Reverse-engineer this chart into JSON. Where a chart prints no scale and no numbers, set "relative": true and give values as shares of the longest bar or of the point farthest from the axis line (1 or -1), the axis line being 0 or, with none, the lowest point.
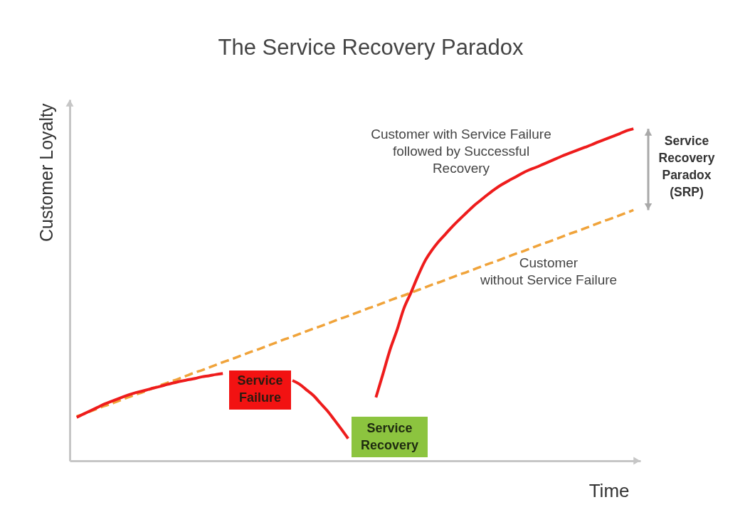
{
  "chart_data": {
    "type": "line",
    "title": "The Service Recovery Paradox",
    "xlabel": "Time",
    "ylabel": "Customer Loyalty",
    "relative": true,
    "categories": [
      null,
      null,
      null,
      null,
      null,
      null,
      null,
      null,
      null,
      null,
      null,
      null,
      null,
      null,
      null,
      null,
      null,
      null,
      null,
      null,
      null,
      null,
      null,
      null,
      null,
      null,
      null,
      null,
      null,
      null,
      null,
      null,
      null,
      null,
      null,
      null,
      null,
      null,
      null,
      null,
      null,
      null,
      null,
      null,
      null,
      null,
      null,
      null,
      null,
      null,
      null,
      null,
      null,
      null,
      null,
      null,
      null,
      null,
      null,
      null,
      null,
      null,
      null,
      null,
      null,
      null,
      null,
      null,
      null,
      null,
      null,
      null,
      null,
      null,
      null,
      null,
      null,
      null,
      null,
      null,
      null
    ],
    "series": [
      {
        "name": "Customer with Service Failure followed by Successful Recovery",
        "color": "#ee1c1c",
        "line_style": "solid",
        "values": [
          0.131,
          0.141,
          0.151,
          0.161,
          0.171,
          0.179,
          0.187,
          0.195,
          0.202,
          0.208,
          0.213,
          0.219,
          0.224,
          0.23,
          0.235,
          0.24,
          0.244,
          0.248,
          0.253,
          0.256,
          0.26,
          0.263,
          null,
          null,
          null,
          null,
          null,
          null,
          null,
          null,
          null,
          0.242,
          0.231,
          0.214,
          0.197,
          0.174,
          0.151,
          0.124,
          0.096,
          0.067,
          null,
          null,
          null,
          0.191,
          0.261,
          0.333,
          0.392,
          0.458,
          0.505,
          0.555,
          0.6,
          0.633,
          0.66,
          0.683,
          0.706,
          0.727,
          0.747,
          0.767,
          0.784,
          0.801,
          0.817,
          0.831,
          0.843,
          0.854,
          0.866,
          0.876,
          0.884,
          0.893,
          0.902,
          0.911,
          0.92,
          0.928,
          0.936,
          0.944,
          0.952,
          0.961,
          0.969,
          0.977,
          0.985,
          0.994,
          1
        ]
      },
      {
        "name": "Customer without Service Failure",
        "color": "#f0a33a",
        "line_style": "dashed",
        "values": [
          0.134,
          0.141,
          0.149,
          0.157,
          0.165,
          0.172,
          0.18,
          0.188,
          0.196,
          0.203,
          0.211,
          0.219,
          0.227,
          0.235,
          0.242,
          0.25,
          0.258,
          0.266,
          0.273,
          0.281,
          0.289,
          0.297,
          0.304,
          0.312,
          0.32,
          0.328,
          0.335,
          0.343,
          0.351,
          0.359,
          0.367,
          0.374,
          0.382,
          0.39,
          0.398,
          0.405,
          0.413,
          0.421,
          0.429,
          0.436,
          0.444,
          0.452,
          0.46,
          0.467,
          0.475,
          0.483,
          0.491,
          0.498,
          0.506,
          0.514,
          0.522,
          0.53,
          0.537,
          0.545,
          0.553,
          0.561,
          0.568,
          0.576,
          0.584,
          0.592,
          0.599,
          0.607,
          0.615,
          0.623,
          0.63,
          0.638,
          0.646,
          0.654,
          0.661,
          0.669,
          0.677,
          0.685,
          0.692,
          0.7,
          0.708,
          0.716,
          0.724,
          0.731,
          0.739,
          0.747,
          0.755
        ]
      }
    ],
    "annotations": [
      "Service Failure",
      "Service Recovery",
      "Service Recovery Paradox (SRP)"
    ]
  }
}
